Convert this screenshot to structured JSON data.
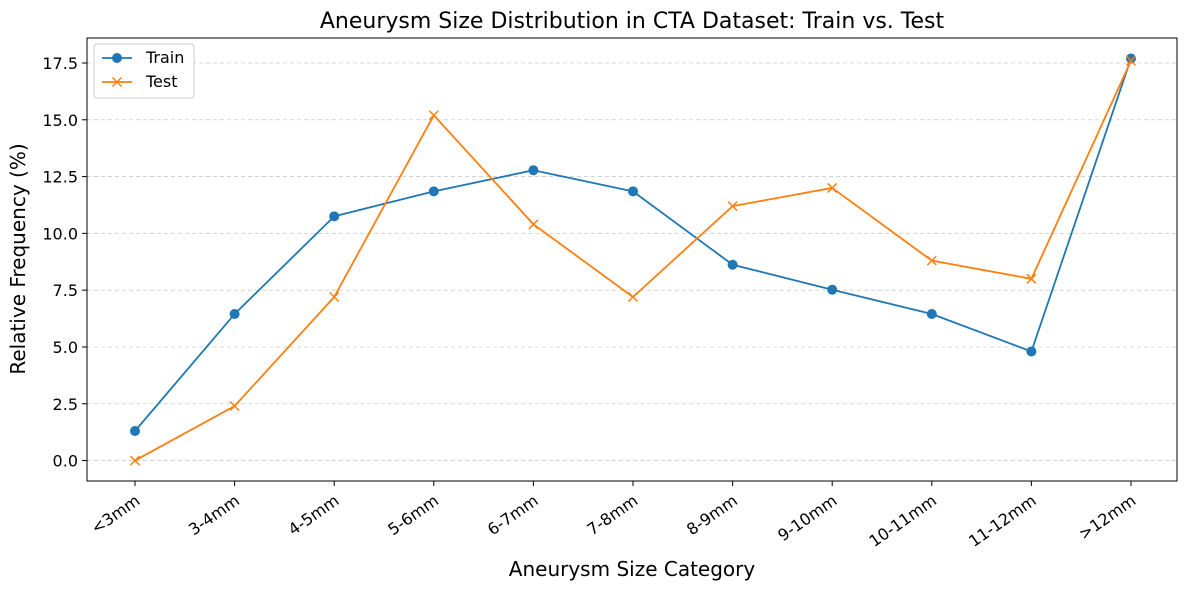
{
  "chart_data": {
    "type": "line",
    "title": "Aneurysm Size Distribution in CTA Dataset: Train vs. Test",
    "xlabel": "Aneurysm Size Category",
    "ylabel": "Relative Frequency (%)",
    "categories": [
      "<3mm",
      "3-4mm",
      "4-5mm",
      "5-6mm",
      "6-7mm",
      "7-8mm",
      "8-9mm",
      "9-10mm",
      "10-11mm",
      "11-12mm",
      ">12mm"
    ],
    "ylim": [
      -0.9,
      18.6
    ],
    "yticks": [
      0.0,
      2.5,
      5.0,
      7.5,
      10.0,
      12.5,
      15.0,
      17.5
    ],
    "ytick_labels": [
      "0.0",
      "2.5",
      "5.0",
      "7.5",
      "10.0",
      "12.5",
      "15.0",
      "17.5"
    ],
    "grid": "y-dashed",
    "legend_position": "top-left",
    "series": [
      {
        "name": "Train",
        "color": "#1f77b4",
        "marker": "circle",
        "values": [
          1.3,
          6.45,
          10.75,
          11.85,
          12.78,
          11.85,
          8.62,
          7.52,
          6.45,
          4.8,
          17.7
        ]
      },
      {
        "name": "Test",
        "color": "#ff7f0e",
        "marker": "x",
        "values": [
          0.0,
          2.4,
          7.2,
          15.2,
          10.4,
          7.2,
          11.2,
          12.0,
          8.8,
          8.0,
          17.6
        ]
      }
    ]
  }
}
